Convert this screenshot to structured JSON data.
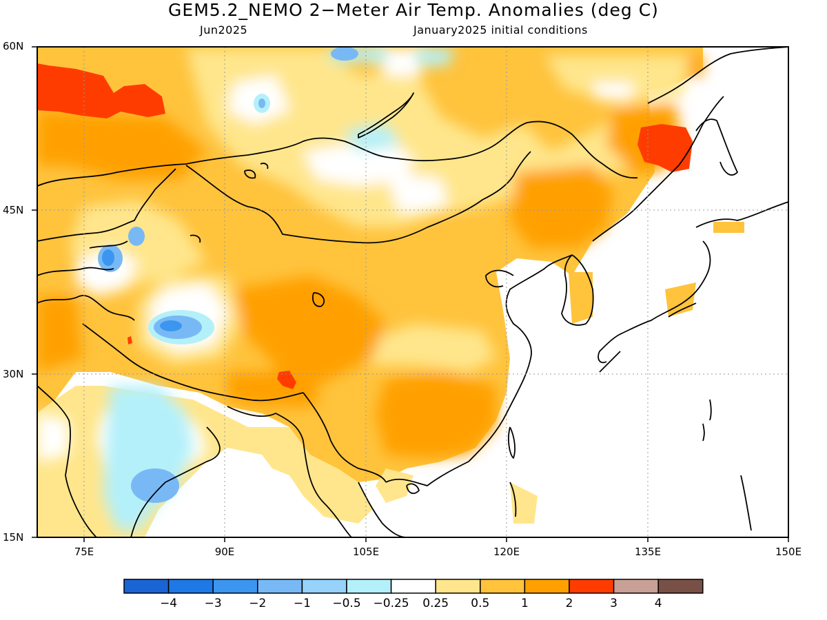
{
  "title": "GEM5.2_NEMO 2−Meter Air Temp. Anomalies (deg C)",
  "subtitle_left": "Jun2025",
  "subtitle_right": "January2025 initial conditions",
  "map": {
    "lon_range": [
      70,
      150
    ],
    "lat_range": [
      15,
      60
    ],
    "lat_labels": [
      "60N",
      "45N",
      "30N",
      "15N"
    ],
    "lon_labels": [
      "75E",
      "90E",
      "105E",
      "120E",
      "135E",
      "150E"
    ],
    "background_color": "#ffffff"
  },
  "colorbar": {
    "colors": [
      "#1a64d6",
      "#1e78e6",
      "#3c96f0",
      "#78b9f5",
      "#96d2fa",
      "#b4f0fa",
      "#ffffff",
      "#ffe68c",
      "#ffc33c",
      "#ffa000",
      "#ff3c00",
      "#c8a096",
      "#785046"
    ],
    "labels": [
      "−4",
      "−3",
      "−2",
      "−1",
      "−0.5",
      "−0.25",
      "0.25",
      "0.5",
      "1",
      "2",
      "3",
      "4"
    ]
  }
}
